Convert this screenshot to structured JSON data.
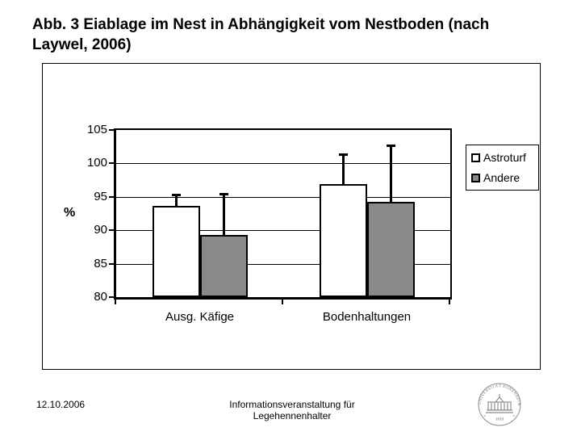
{
  "title": "Abb. 3 Eiablage im Nest in Abhängigkeit vom Nestboden (nach Laywel, 2006)",
  "footer": {
    "date": "12.10.2006",
    "event": "Informationsveranstaltung für Legehennenhalter",
    "seal": {
      "ring_text": "UNIVERSITÄT HOHENHEIM",
      "year": "1818"
    }
  },
  "chart_data": {
    "type": "bar",
    "title": "",
    "categories": [
      "Ausg. Käfige",
      "Bodenhaltungen"
    ],
    "series": [
      {
        "name": "Astroturf",
        "values": [
          93.7,
          96.9
        ],
        "error_top": [
          95.3,
          101.4
        ],
        "fill": "#ffffff"
      },
      {
        "name": "Andere",
        "values": [
          89.3,
          94.3
        ],
        "error_top": [
          95.5,
          102.7
        ],
        "fill": "#898989"
      }
    ],
    "xlabel": "",
    "ylabel": "%",
    "ylim": [
      80,
      105
    ],
    "yticks": [
      80,
      85,
      90,
      95,
      100,
      105
    ],
    "grid": true,
    "legend_position": "right",
    "bar_outline_color": "#000000"
  }
}
